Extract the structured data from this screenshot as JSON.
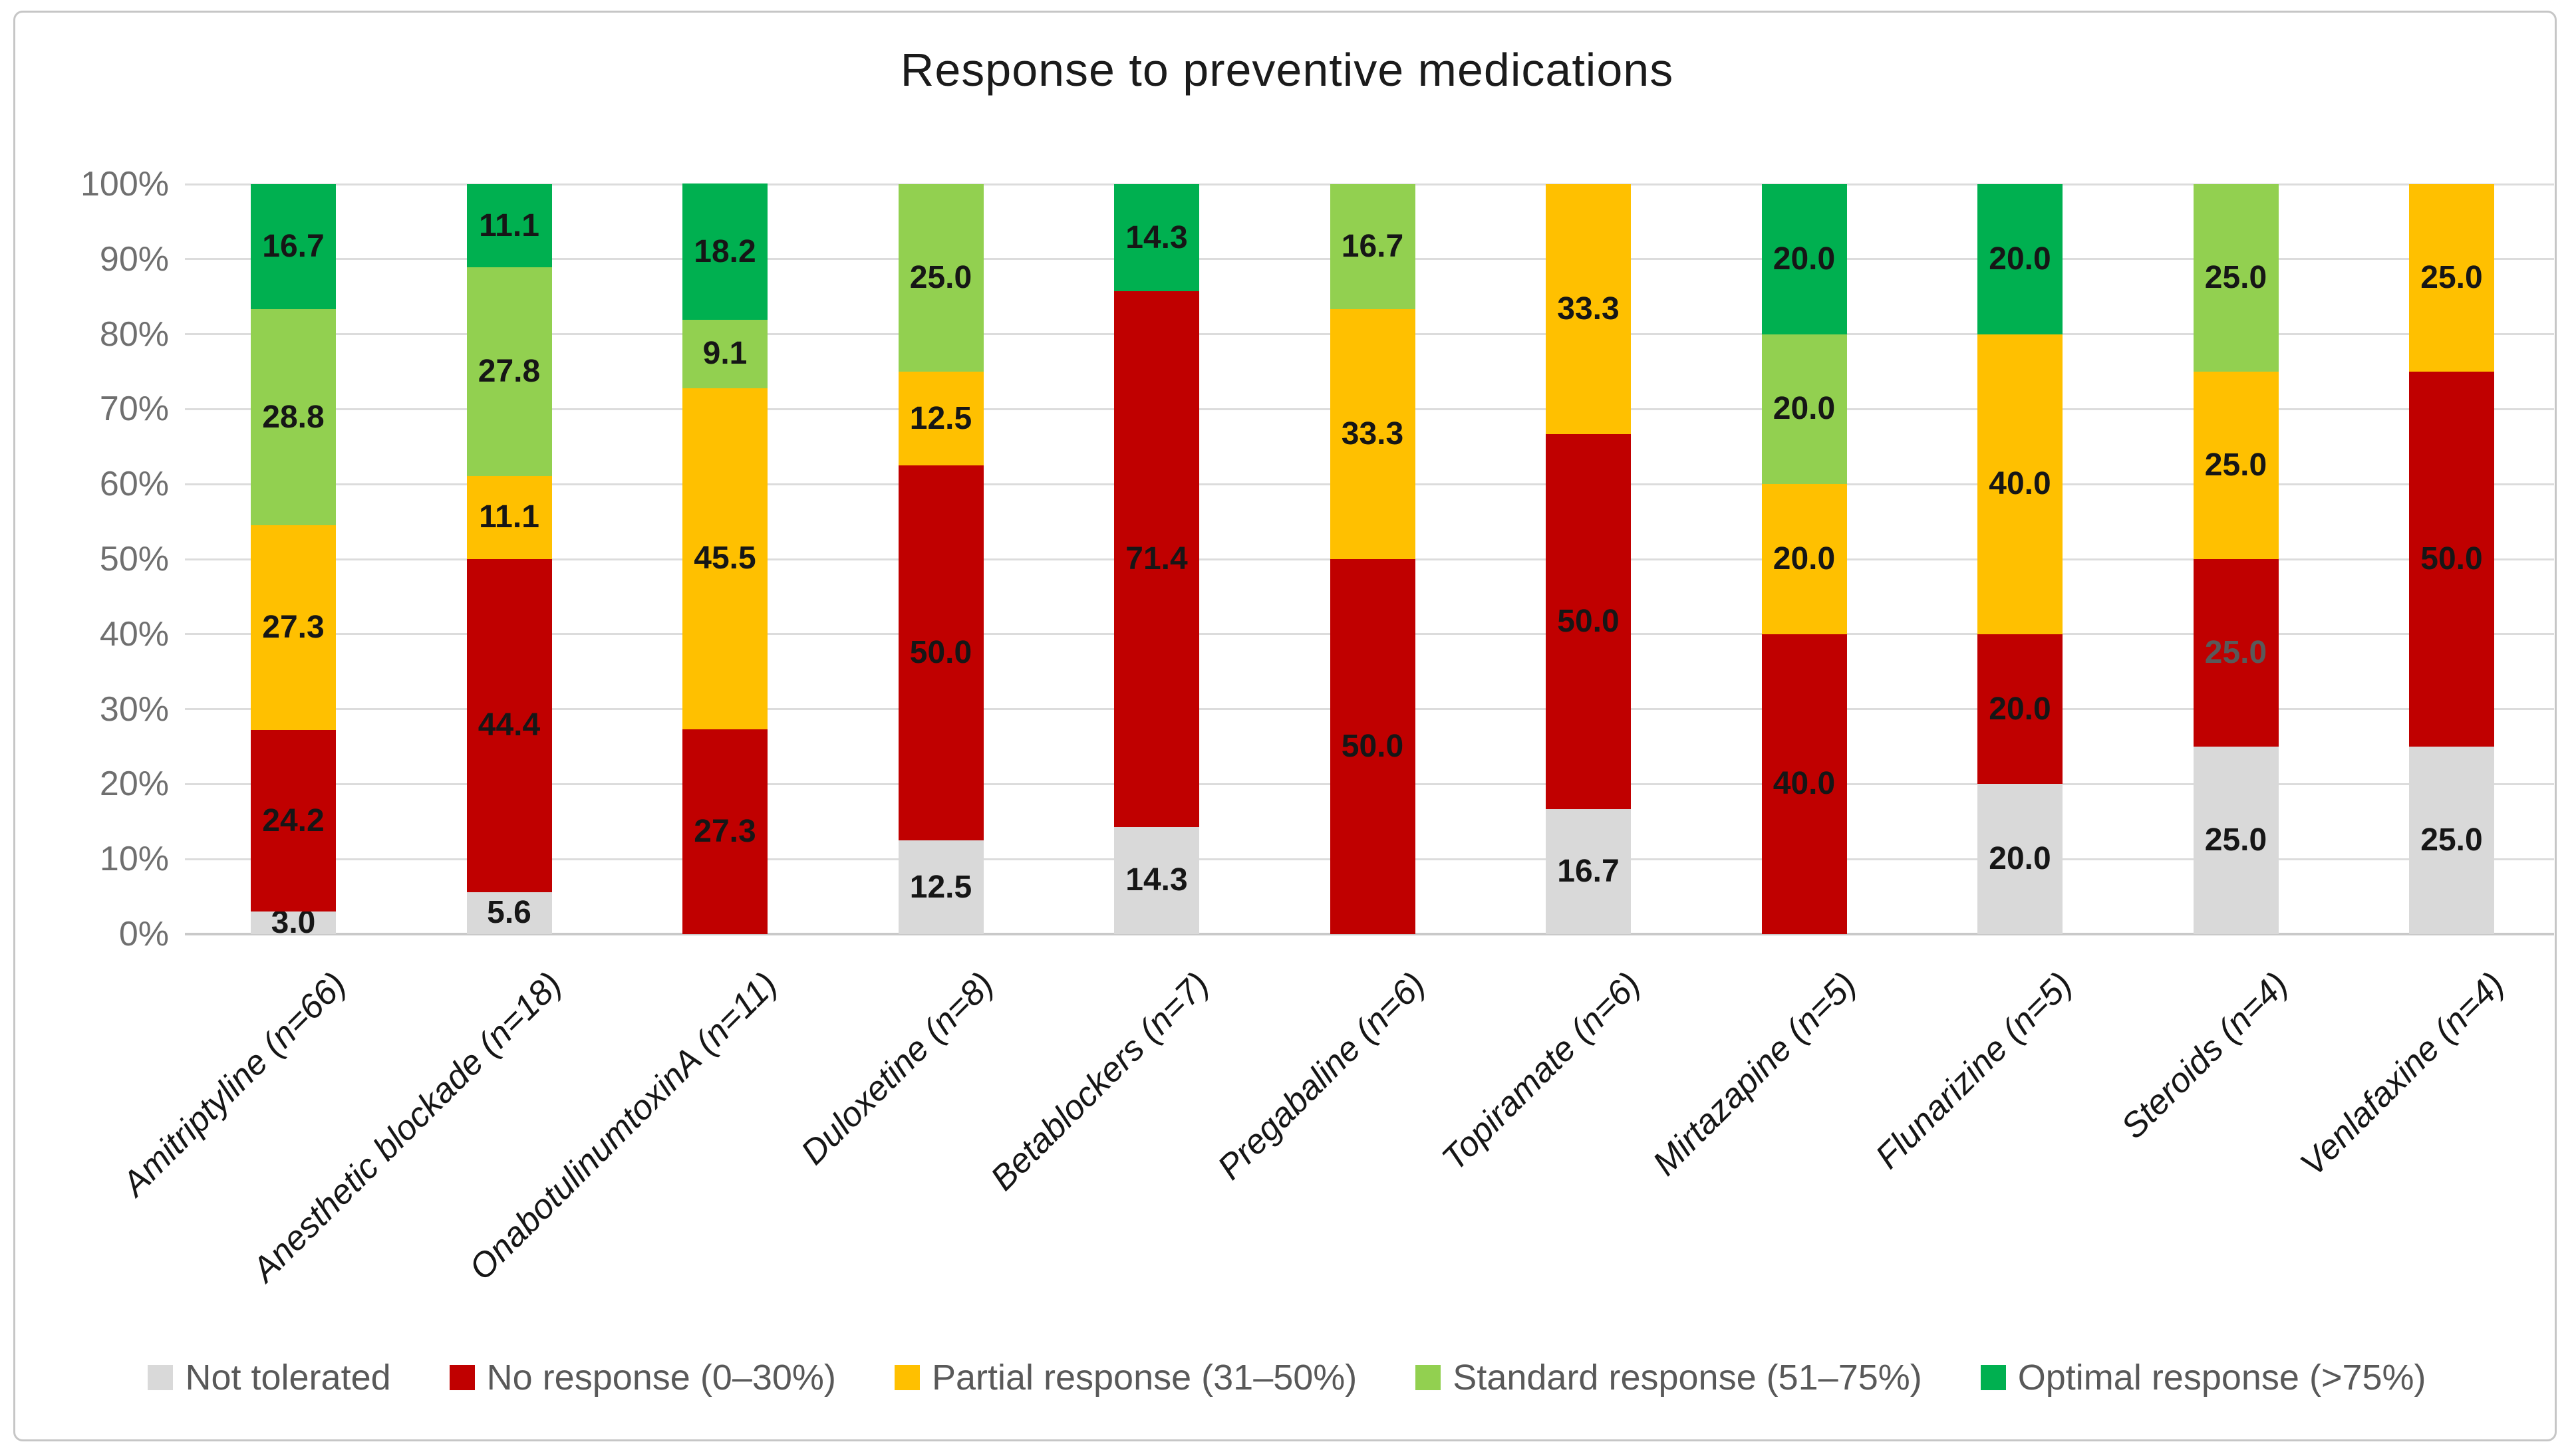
{
  "title": "Response to preventive medications",
  "chart_data": {
    "type": "bar",
    "stacked": true,
    "percent_stacked": true,
    "title": "Response to preventive medications",
    "categories": [
      "Amitriptyline (n=66)",
      "Anesthetic blockade (n=18)",
      "OnabotulinumtoxinA (n=11)",
      "Duloxetine (n=8)",
      "Betablockers (n=7)",
      "Pregabaline (n=6)",
      "Topiramate (n=6)",
      "Mirtazapine (n=5)",
      "Flunarizine (n=5)",
      "Steroids (n=4)",
      "Venlafaxine (n=4)"
    ],
    "series": [
      {
        "name": "Not tolerated",
        "color": "#D9D9D9",
        "values": [
          3.0,
          5.6,
          0,
          12.5,
          14.3,
          0,
          16.7,
          0,
          20.0,
          25.0,
          25.0
        ]
      },
      {
        "name": "No response (0–30%)",
        "color": "#C00000",
        "values": [
          24.2,
          44.4,
          27.3,
          50.0,
          71.4,
          50.0,
          50.0,
          40.0,
          20.0,
          25.0,
          50.0
        ]
      },
      {
        "name": "Partial response (31–50%)",
        "color": "#FFC000",
        "values": [
          27.3,
          11.1,
          45.5,
          12.5,
          0,
          33.3,
          33.3,
          20.0,
          40.0,
          25.0,
          25.0
        ]
      },
      {
        "name": "Standard response (51–75%)",
        "color": "#92D050",
        "values": [
          28.8,
          27.8,
          9.1,
          25.0,
          0,
          16.7,
          0,
          20.0,
          0,
          25.0,
          0
        ]
      },
      {
        "name": "Optimal response (>75%)",
        "color": "#00B050",
        "values": [
          16.7,
          11.1,
          18.2,
          0,
          14.3,
          0,
          0,
          20.0,
          20.0,
          0,
          0
        ]
      }
    ],
    "y_ticks": [
      "0%",
      "10%",
      "20%",
      "30%",
      "40%",
      "50%",
      "60%",
      "70%",
      "80%",
      "90%",
      "100%"
    ],
    "ylim": [
      0,
      100
    ],
    "grid": true,
    "legend_position": "bottom",
    "value_label_color": "#161616",
    "label_overrides": [
      {
        "category": 9,
        "series": 1,
        "color": "#595959"
      }
    ]
  }
}
